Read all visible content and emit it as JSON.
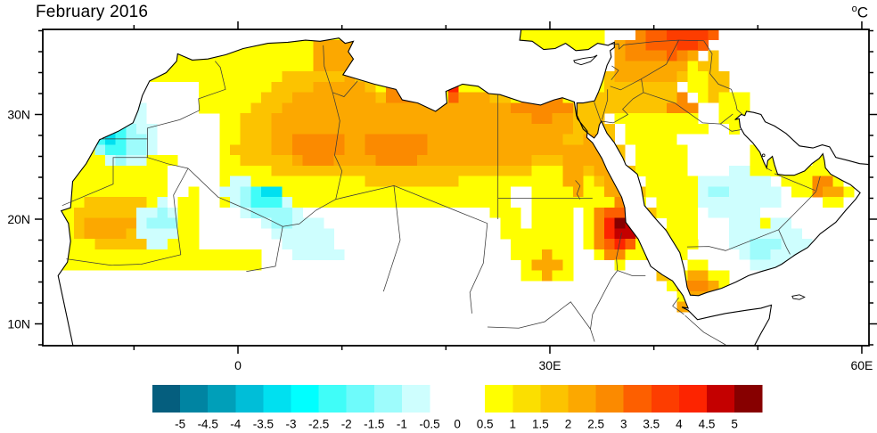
{
  "title": "February 2016",
  "unit": {
    "sup": "o",
    "base": "C"
  },
  "map": {
    "extent": {
      "lon_min": -18.8,
      "lon_max": 60.7,
      "lat_min": 7.9,
      "lat_max": 38.1
    },
    "y_axis": {
      "major": [
        {
          "label": "30N",
          "lat": 30
        },
        {
          "label": "20N",
          "lat": 20
        },
        {
          "label": "10N",
          "lat": 10
        }
      ],
      "minor_lats": [
        8,
        12,
        14,
        16,
        18,
        22,
        24,
        26,
        28,
        32,
        34,
        36,
        38
      ]
    },
    "x_axis": {
      "major": [
        {
          "label": "0",
          "lon": 0
        },
        {
          "label": "30E",
          "lon": 30
        },
        {
          "label": "60E",
          "lon": 60
        }
      ],
      "minor_lons": [
        -10,
        10,
        20,
        40,
        50
      ]
    }
  },
  "palette": {
    "y": "#ffff00",
    "g": "#fbdf00",
    "a": "#fcc300",
    "o": "#fca800",
    "O": "#fb8a00",
    "r": "#fd5f00",
    "R": "#fd3d00",
    "X": "#fd2400",
    "d": "#c40000",
    "D": "#870000",
    "c1": "#cefefe",
    "c2": "#9efcfc",
    "c3": "#40fdf8",
    "c4": "#00e0f0",
    "w": "#ffffff"
  },
  "colorbar": {
    "tick_labels": [
      "-5",
      "-4.5",
      "-4",
      "-3.5",
      "-3",
      "-2.5",
      "-2",
      "-1.5",
      "-1",
      "-0.5",
      "0",
      "0.5",
      "1",
      "1.5",
      "2",
      "2.5",
      "3",
      "3.5",
      "4",
      "4.5",
      "5"
    ],
    "cell_colors": [
      "#055e7e",
      "#0084a2",
      "#009fb9",
      "#00bed8",
      "#00e0f0",
      "#00ffff",
      "#40fdf8",
      "#6efbfb",
      "#9efcfc",
      "#cefefe",
      "#ffffff",
      "#ffffff",
      "#ffff00",
      "#fbdf00",
      "#fcc300",
      "#fca800",
      "#fb8a00",
      "#fd5f00",
      "#fd3d00",
      "#fd2400",
      "#c40000",
      "#870000"
    ]
  },
  "anomaly_regions": [
    {
      "c": "y",
      "s": "r",
      "v": [
        -17.6,
        15.2,
        -4.0,
        27.3
      ]
    },
    {
      "c": "y",
      "s": "r",
      "v": [
        -10.2,
        30.0,
        -1.5,
        36.0
      ]
    },
    {
      "c": "y",
      "s": "r",
      "v": [
        -2.0,
        21.5,
        35.5,
        37.7
      ]
    },
    {
      "c": "y",
      "s": "p",
      "v": [
        [
          -17.6,
          15.2
        ],
        [
          -17.6,
          18.4
        ],
        [
          -10,
          17.8
        ],
        [
          -3,
          17.2
        ],
        [
          2,
          16.6
        ],
        [
          2,
          15.2
        ]
      ]
    },
    {
      "c": "w",
      "s": "r",
      "v": [
        -12.3,
        26.0,
        -4.3,
        32.9
      ]
    },
    {
      "c": "w",
      "s": "p",
      "v": [
        [
          -6.2,
          21.2
        ],
        [
          -1.6,
          25.2
        ],
        [
          -1.6,
          27.5
        ],
        [
          -5.2,
          27.5
        ],
        [
          -7.2,
          23.3
        ]
      ]
    },
    {
      "c": "w",
      "s": "r",
      "v": [
        23.8,
        19.2,
        30.6,
        22.6
      ]
    },
    {
      "c": "a",
      "s": "e",
      "v": [
        -11.6,
        19.7,
        4.4,
        2.5
      ]
    },
    {
      "c": "o",
      "s": "e",
      "v": [
        -12.6,
        19.3,
        2.4,
        1.3
      ]
    },
    {
      "c": "a",
      "s": "p",
      "v": [
        [
          -0.5,
          27
        ],
        [
          1,
          31
        ],
        [
          4,
          33.5
        ],
        [
          9,
          34.9
        ],
        [
          11.5,
          34.6
        ],
        [
          13,
          32.2
        ],
        [
          17,
          31
        ],
        [
          20.5,
          31.7
        ],
        [
          24,
          32.4
        ],
        [
          28,
          30.7
        ],
        [
          31.5,
          30.7
        ],
        [
          34.8,
          29.7
        ],
        [
          35.3,
          27.5
        ],
        [
          32,
          25.3
        ],
        [
          26,
          24.2
        ],
        [
          19.5,
          23.3
        ],
        [
          12,
          23.6
        ],
        [
          5,
          24.3
        ],
        [
          0.5,
          25
        ]
      ]
    },
    {
      "c": "o",
      "s": "p",
      "v": [
        [
          2.5,
          27
        ],
        [
          4,
          30.6
        ],
        [
          8,
          33
        ],
        [
          10.8,
          33.7
        ],
        [
          12.8,
          31.9
        ],
        [
          16,
          30.5
        ],
        [
          19,
          31.1
        ],
        [
          23,
          31.9
        ],
        [
          27.5,
          30.3
        ],
        [
          31,
          30.3
        ],
        [
          33.9,
          29.3
        ],
        [
          34.3,
          27.9
        ],
        [
          31,
          26
        ],
        [
          25,
          25
        ],
        [
          18,
          24.6
        ],
        [
          10,
          25.1
        ],
        [
          5,
          25.6
        ]
      ]
    },
    {
      "c": "o",
      "s": "e",
      "v": [
        9.3,
        35.4,
        2.3,
        1.8
      ]
    },
    {
      "c": "O",
      "s": "e",
      "v": [
        7.6,
        26.9,
        2.7,
        1.6
      ]
    },
    {
      "c": "O",
      "s": "e",
      "v": [
        15.2,
        26.9,
        2.9,
        1.7
      ]
    },
    {
      "c": "O",
      "s": "e",
      "v": [
        15.6,
        31.9,
        1.7,
        1.1
      ]
    },
    {
      "c": "O",
      "s": "e",
      "v": [
        29.2,
        30.7,
        2.9,
        1.2
      ]
    },
    {
      "c": "r",
      "s": "r",
      "v": [
        19.8,
        31.3,
        21.4,
        32.9
      ]
    },
    {
      "c": "X",
      "s": "r",
      "v": [
        20.2,
        31.8,
        21.0,
        32.6
      ]
    },
    {
      "c": "O",
      "s": "e",
      "v": [
        30.4,
        31.5,
        1.1,
        0.8
      ]
    },
    {
      "c": "a",
      "s": "p",
      "v": [
        [
          32,
          31.7
        ],
        [
          34.5,
          32.1
        ],
        [
          35.8,
          34
        ],
        [
          36,
          36.7
        ],
        [
          38.5,
          37.4
        ],
        [
          41.5,
          36.7
        ],
        [
          43.6,
          35.3
        ],
        [
          42.5,
          32.9
        ],
        [
          43.9,
          30.4
        ],
        [
          41.5,
          29.7
        ],
        [
          38.5,
          29.3
        ],
        [
          35.8,
          29.9
        ],
        [
          34,
          28.5
        ],
        [
          32.4,
          28.3
        ]
      ]
    },
    {
      "c": "y",
      "s": "p",
      "v": [
        [
          42.9,
          34.9
        ],
        [
          44.3,
          35.4
        ],
        [
          46.4,
          31.6
        ],
        [
          45.0,
          30.3
        ],
        [
          43.5,
          32.6
        ]
      ]
    },
    {
      "c": "a",
      "s": "p",
      "v": [
        [
          44.3,
          35.5
        ],
        [
          46.1,
          35.7
        ],
        [
          47.9,
          31.3
        ],
        [
          46.2,
          30.2
        ],
        [
          45.0,
          32.8
        ]
      ]
    },
    {
      "c": "o",
      "s": "p",
      "v": [
        [
          35.8,
          34.5
        ],
        [
          36.2,
          36.9
        ],
        [
          38.5,
          37.7
        ],
        [
          42,
          37.1
        ],
        [
          44,
          35.9
        ],
        [
          42.8,
          33.9
        ],
        [
          40,
          32.7
        ],
        [
          37,
          32.9
        ]
      ]
    },
    {
      "c": "O",
      "s": "p",
      "v": [
        [
          36.9,
          35.4
        ],
        [
          37.3,
          37.2
        ],
        [
          39.6,
          38.0
        ],
        [
          42.6,
          37.0
        ],
        [
          43.5,
          36.0
        ],
        [
          41,
          34.7
        ],
        [
          38.3,
          34.7
        ]
      ]
    },
    {
      "c": "r",
      "s": "p",
      "v": [
        [
          39.4,
          36.0
        ],
        [
          39.7,
          37.6
        ],
        [
          40.7,
          38.8
        ],
        [
          46.4,
          38.8
        ],
        [
          45.4,
          36.4
        ],
        [
          42,
          35.5
        ]
      ]
    },
    {
      "c": "R",
      "s": "p",
      "v": [
        [
          41.4,
          36.9
        ],
        [
          41.1,
          38.8
        ],
        [
          45.9,
          38.8
        ],
        [
          44.7,
          36.7
        ],
        [
          42.9,
          36.3
        ]
      ]
    },
    {
      "c": "X",
      "s": "e",
      "v": [
        43.4,
        38.3,
        1.0,
        0.7
      ]
    },
    {
      "c": "y",
      "s": "e",
      "v": [
        47.4,
        31.1,
        1.6,
        1.4
      ]
    },
    {
      "c": "O",
      "s": "e",
      "v": [
        42.6,
        30.7,
        1.5,
        1.0
      ]
    },
    {
      "c": "a",
      "s": "p",
      "v": [
        [
          31.8,
          28.6
        ],
        [
          36,
          28.9
        ],
        [
          39,
          23
        ],
        [
          42.5,
          16
        ],
        [
          44,
          13
        ],
        [
          42,
          12.3
        ],
        [
          38.5,
          17.5
        ],
        [
          34.8,
          23
        ],
        [
          31.5,
          27
        ]
      ]
    },
    {
      "c": "o",
      "s": "p",
      "v": [
        [
          33,
          27.9
        ],
        [
          35.6,
          27.6
        ],
        [
          37.9,
          22.1
        ],
        [
          36.6,
          20.6
        ],
        [
          34.4,
          24.6
        ],
        [
          32.6,
          26.9
        ]
      ]
    },
    {
      "c": "o",
      "s": "r",
      "v": [
        31.2,
        22.0,
        33.3,
        27.0
      ]
    },
    {
      "c": "y",
      "s": "p",
      "v": [
        [
          36.5,
          30.1
        ],
        [
          43,
          30.3
        ],
        [
          47.4,
          26.6
        ],
        [
          46.8,
          23.5
        ],
        [
          44.3,
          17.3
        ],
        [
          42.3,
          16
        ],
        [
          41.2,
          18.9
        ],
        [
          38.8,
          23.6
        ]
      ]
    },
    {
      "c": "w",
      "s": "p",
      "v": [
        [
          42.6,
          27.9
        ],
        [
          47.1,
          27.8
        ],
        [
          49.6,
          25.1
        ],
        [
          54.1,
          20.6
        ],
        [
          52.4,
          15.2
        ],
        [
          45.9,
          14.7
        ],
        [
          44.3,
          19.6
        ],
        [
          43.7,
          24.1
        ]
      ]
    },
    {
      "c": "y",
      "s": "p",
      "v": [
        [
          23.4,
          22.7
        ],
        [
          25.7,
          22.7
        ],
        [
          30.4,
          14.2
        ],
        [
          27.9,
          14.2
        ]
      ]
    },
    {
      "c": "y",
      "s": "r",
      "v": [
        28.7,
        16.4,
        32.4,
        22.7
      ]
    },
    {
      "c": "y",
      "s": "e",
      "v": [
        29.9,
        15.7,
        2.3,
        2.1
      ]
    },
    {
      "c": "o",
      "s": "e",
      "v": [
        29.9,
        15.6,
        1.3,
        1.2
      ]
    },
    {
      "c": "y",
      "s": "e",
      "v": [
        36.5,
        19.0,
        3.3,
        3.5
      ]
    },
    {
      "c": "O",
      "s": "e",
      "v": [
        36.6,
        19.0,
        2.4,
        2.7
      ]
    },
    {
      "c": "r",
      "s": "e",
      "v": [
        36.7,
        19.0,
        1.8,
        2.1
      ]
    },
    {
      "c": "X",
      "s": "e",
      "v": [
        36.8,
        19.0,
        1.3,
        1.6
      ]
    },
    {
      "c": "d",
      "s": "e",
      "v": [
        36.9,
        19.1,
        0.9,
        1.1
      ]
    },
    {
      "c": "D",
      "s": "e",
      "v": [
        36.85,
        19.45,
        0.55,
        0.65
      ]
    },
    {
      "c": "c1",
      "s": "e",
      "v": [
        -11.2,
        27.7,
        3.3,
        2.7
      ]
    },
    {
      "c": "c1",
      "s": "e",
      "v": [
        -9.9,
        30.1,
        1.4,
        1.6
      ]
    },
    {
      "c": "c2",
      "s": "e",
      "v": [
        -11.5,
        27.5,
        2.5,
        2.0
      ]
    },
    {
      "c": "c3",
      "s": "e",
      "v": [
        -11.9,
        27.7,
        1.6,
        1.3
      ]
    },
    {
      "c": "c4",
      "s": "e",
      "v": [
        -12.3,
        27.9,
        0.9,
        0.8
      ]
    },
    {
      "c": "c1",
      "s": "p",
      "v": [
        [
          -2.2,
          23.4
        ],
        [
          0.6,
          23.9
        ],
        [
          3.6,
          22.4
        ],
        [
          8.9,
          18.9
        ],
        [
          9.9,
          16.2
        ],
        [
          6.2,
          15.7
        ],
        [
          1.4,
          19.9
        ],
        [
          -1.7,
          21.9
        ]
      ]
    },
    {
      "c": "c2",
      "s": "p",
      "v": [
        [
          -0.2,
          22.6
        ],
        [
          2.1,
          22.9
        ],
        [
          5.6,
          20.1
        ],
        [
          4.1,
          18.7
        ],
        [
          0.6,
          21.1
        ]
      ]
    },
    {
      "c": "c3",
      "s": "e",
      "v": [
        2.9,
        22.0,
        1.7,
        1.2
      ]
    },
    {
      "c": "c4",
      "s": "e",
      "v": [
        3.3,
        22.3,
        0.9,
        0.7
      ]
    },
    {
      "c": "c1",
      "s": "p",
      "v": [
        [
          -10.2,
          20.9
        ],
        [
          -6.9,
          21.9
        ],
        [
          -5.1,
          19.1
        ],
        [
          -7.9,
          17.1
        ],
        [
          -9.9,
          18.9
        ]
      ]
    },
    {
      "c": "c2",
      "s": "e",
      "v": [
        -7.3,
        19.9,
        1.2,
        1.0
      ]
    },
    {
      "c": "c1",
      "s": "e",
      "v": [
        47.9,
        22.4,
        4.1,
        2.3
      ]
    },
    {
      "c": "c2",
      "s": "e",
      "v": [
        46.4,
        22.6,
        1.2,
        0.9
      ]
    },
    {
      "c": "c1",
      "s": "p",
      "v": [
        [
          47.4,
          19.6
        ],
        [
          52.6,
          20.1
        ],
        [
          54.9,
          17.4
        ],
        [
          52.6,
          14.7
        ],
        [
          48.9,
          15.4
        ],
        [
          47.1,
          17.4
        ]
      ]
    },
    {
      "c": "c2",
      "s": "e",
      "v": [
        50.6,
        17.4,
        1.5,
        1.1
      ]
    },
    {
      "c": "y",
      "s": "r",
      "v": [
        49.7,
        23.8,
        52.0,
        27.5
      ]
    },
    {
      "c": "y",
      "s": "e",
      "v": [
        47.7,
        29.6,
        1.2,
        1.0
      ]
    },
    {
      "c": "y",
      "s": "p",
      "v": [
        [
          51.9,
          24.5
        ],
        [
          54,
          25.1
        ],
        [
          56.3,
          26.5
        ],
        [
          57.3,
          25.3
        ],
        [
          59,
          23.2
        ],
        [
          59.6,
          22.5
        ],
        [
          57.6,
          21.2
        ],
        [
          55,
          21.9
        ],
        [
          52.8,
          23
        ]
      ]
    },
    {
      "c": "O",
      "s": "e",
      "v": [
        56.5,
        22.9,
        1.3,
        0.9
      ]
    },
    {
      "c": "o",
      "s": "e",
      "v": [
        57.4,
        22.4,
        1.1,
        0.8
      ]
    },
    {
      "c": "y",
      "s": "e",
      "v": [
        44.3,
        13.9,
        2.7,
        1.9
      ]
    },
    {
      "c": "o",
      "s": "e",
      "v": [
        44.5,
        13.6,
        1.8,
        1.2
      ]
    },
    {
      "c": "O",
      "s": "e",
      "v": [
        44.2,
        13.2,
        0.8,
        0.6
      ]
    },
    {
      "c": "y",
      "s": "e",
      "v": [
        43.0,
        11.7,
        1.3,
        1.0
      ]
    },
    {
      "c": "o",
      "s": "e",
      "v": [
        43.3,
        11.4,
        0.7,
        0.5
      ]
    },
    {
      "c": "y",
      "s": "e",
      "v": [
        50.5,
        19.9,
        0.6,
        0.5
      ]
    }
  ]
}
